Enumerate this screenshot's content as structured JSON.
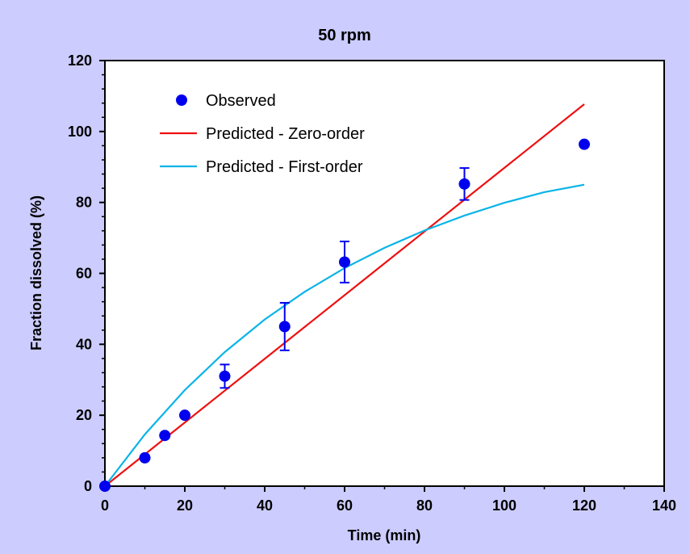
{
  "chart_data": {
    "type": "scatter",
    "title": "50 rpm",
    "xlabel": "Time (min)",
    "ylabel": "Fraction dissolved (%)",
    "xlim": [
      0,
      140
    ],
    "ylim": [
      0,
      120
    ],
    "x_ticks": [
      0,
      20,
      40,
      60,
      80,
      100,
      120,
      140
    ],
    "y_ticks": [
      0,
      20,
      40,
      60,
      80,
      100,
      120
    ],
    "x_tick_labels": [
      "0",
      "20",
      "40",
      "60",
      "80",
      "100",
      "120",
      "140"
    ],
    "y_tick_labels": [
      "0",
      "20",
      "40",
      "60",
      "80",
      "100",
      "120"
    ],
    "grid": false,
    "legend_position": "top-left",
    "series": [
      {
        "name": "Observed",
        "kind": "points",
        "color": "#0000ee",
        "x": [
          0,
          10,
          15,
          20,
          30,
          45,
          60,
          90,
          120
        ],
        "y": [
          0,
          8,
          14.3,
          20,
          31,
          45,
          63.2,
          85.2,
          96.4
        ],
        "error": [
          0,
          0.5,
          0.7,
          1,
          3.3,
          6.7,
          5.8,
          4.5,
          1
        ]
      },
      {
        "name": "Predicted - Zero-order",
        "kind": "line",
        "color": "#ee1111",
        "x": [
          0,
          120
        ],
        "y": [
          0,
          107.7
        ]
      },
      {
        "name": "Predicted - First-order",
        "kind": "line",
        "color": "#0ab4e8",
        "x": [
          0,
          10,
          20,
          30,
          40,
          50,
          60,
          70,
          80,
          90,
          100,
          110,
          120
        ],
        "y": [
          0,
          14.6,
          27.1,
          37.8,
          47.0,
          54.8,
          61.5,
          67.2,
          72.1,
          76.3,
          79.9,
          82.9,
          85.0
        ]
      }
    ]
  }
}
